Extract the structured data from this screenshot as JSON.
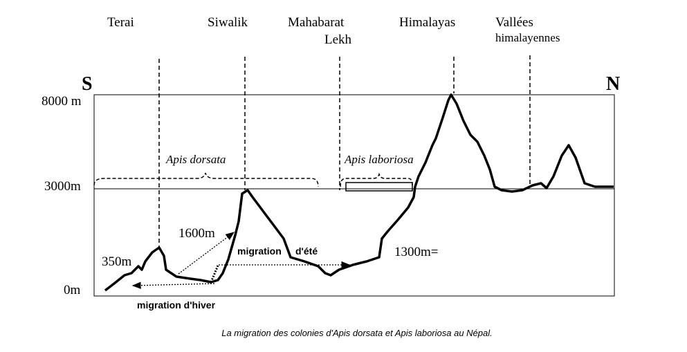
{
  "regions": [
    [
      "Terai"
    ],
    [
      "Siwalik"
    ],
    [
      "Mahabarat",
      "Lekh"
    ],
    [
      "Himalayas"
    ],
    [
      "Vallées",
      "himalayennes"
    ]
  ],
  "directions": {
    "south": "S",
    "north": "N"
  },
  "altitudes": [
    "8000 m",
    "3000m",
    "0m"
  ],
  "annotations": [
    "350m",
    "1600m",
    "1300m="
  ],
  "species": [
    "Apis dorsata",
    "Apis laboriosa"
  ],
  "migrations": {
    "summer": "migration",
    "summer_2": "d'été",
    "winter": "migration d'hiver"
  },
  "caption": "La migration des colonies d'Apis dorsata et Apis laboriosa au Népal."
}
